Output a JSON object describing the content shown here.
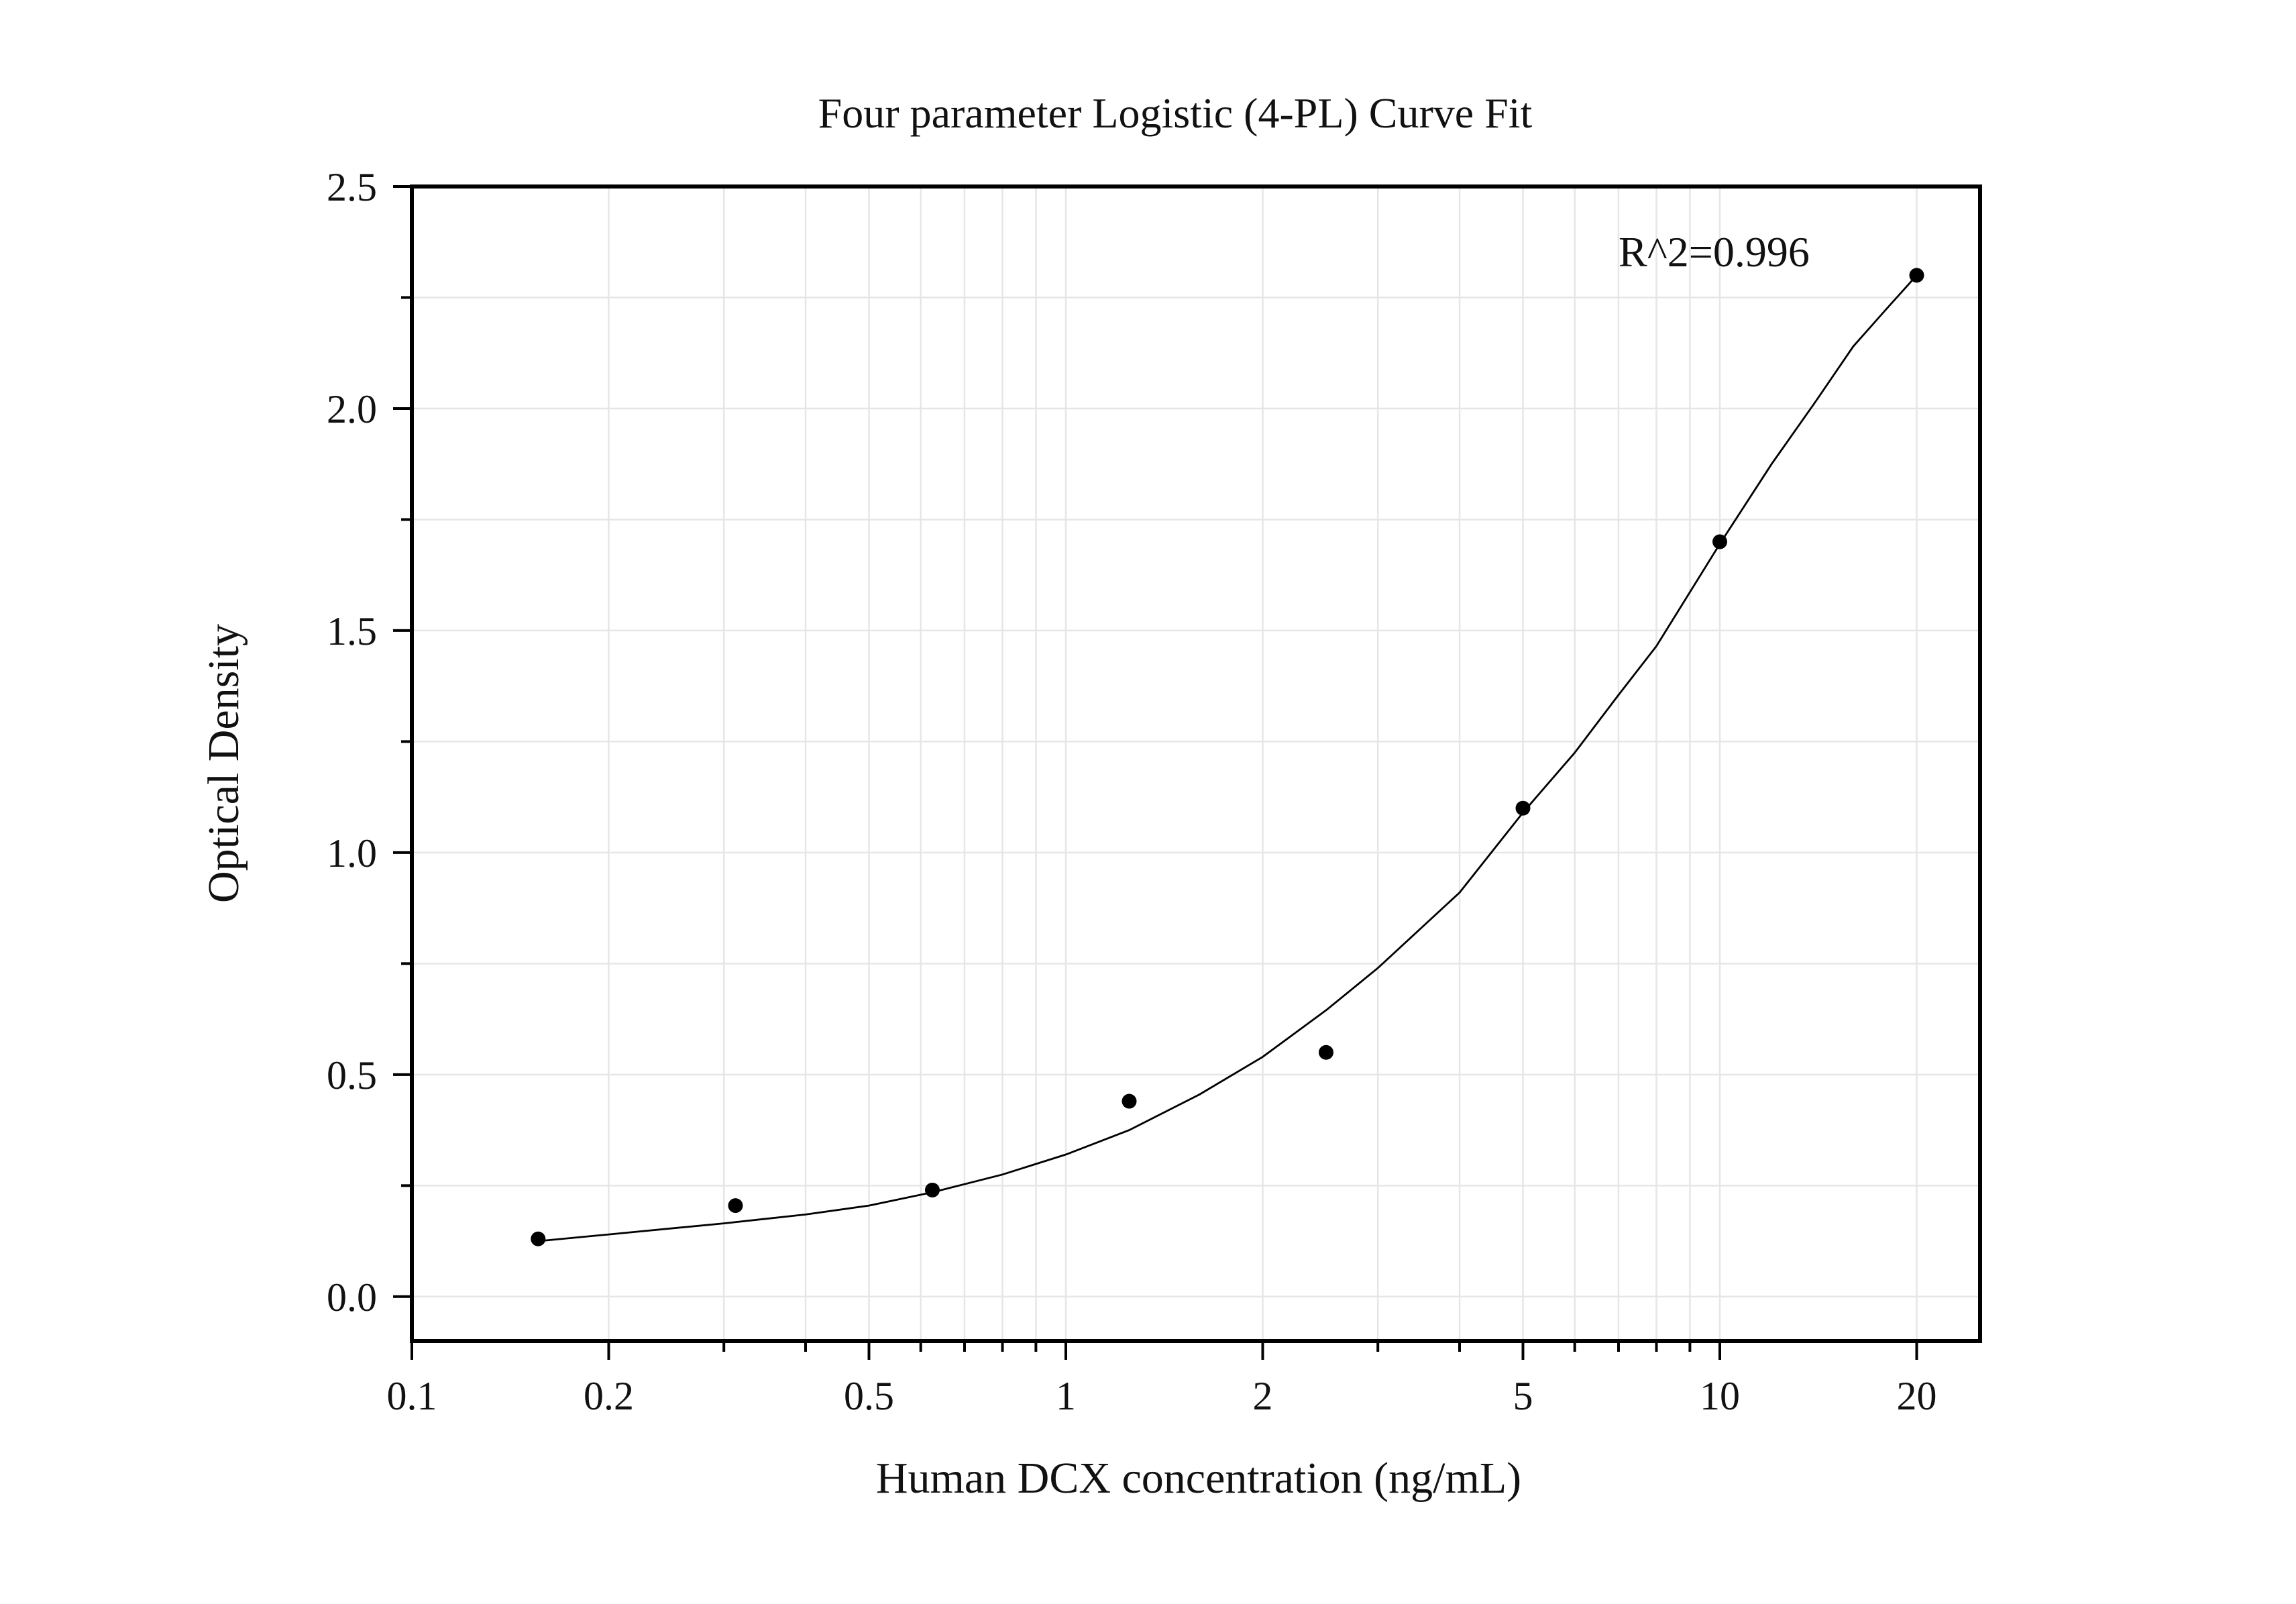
{
  "chart_data": {
    "type": "scatter",
    "title": "Four parameter Logistic (4-PL) Curve Fit",
    "xlabel": "Human DCX concentration (ng/mL)",
    "ylabel": "Optical Density",
    "x_scale": "log",
    "xlim": [
      0.1,
      25
    ],
    "ylim": [
      -0.1,
      2.5
    ],
    "x_ticks": [
      0.1,
      0.2,
      0.5,
      1,
      2,
      5,
      10,
      20
    ],
    "x_tick_labels": [
      "0.1",
      "0.2",
      "0.5",
      "1",
      "2",
      "5",
      "10",
      "20"
    ],
    "y_ticks": [
      0.0,
      0.5,
      1.0,
      1.5,
      2.0,
      2.5
    ],
    "y_tick_labels": [
      "0.0",
      "0.5",
      "1.0",
      "1.5",
      "2.0",
      "2.5"
    ],
    "grid": true,
    "annotation": "R^2=0.996",
    "series": [
      {
        "type": "scatter",
        "x": [
          0.156,
          0.3125,
          0.625,
          1.25,
          2.5,
          5,
          10,
          20
        ],
        "y": [
          0.13,
          0.205,
          0.24,
          0.44,
          0.55,
          1.1,
          1.7,
          2.3
        ]
      },
      {
        "type": "line",
        "x": [
          0.156,
          0.2,
          0.3,
          0.4,
          0.5,
          0.625,
          0.8,
          1.0,
          1.25,
          1.6,
          2.0,
          2.5,
          3.0,
          4.0,
          5.0,
          6.0,
          7.0,
          8.0,
          10.0,
          12.0,
          14.0,
          16.0,
          18.0,
          20.0
        ],
        "y": [
          0.125,
          0.14,
          0.165,
          0.185,
          0.205,
          0.235,
          0.275,
          0.32,
          0.375,
          0.455,
          0.54,
          0.645,
          0.74,
          0.91,
          1.09,
          1.225,
          1.355,
          1.465,
          1.695,
          1.875,
          2.015,
          2.14,
          2.225,
          2.3
        ]
      }
    ],
    "colors": {
      "marker": "#000000",
      "line": "#000000",
      "grid": "#e6e6e6",
      "frame": "#000000"
    }
  }
}
